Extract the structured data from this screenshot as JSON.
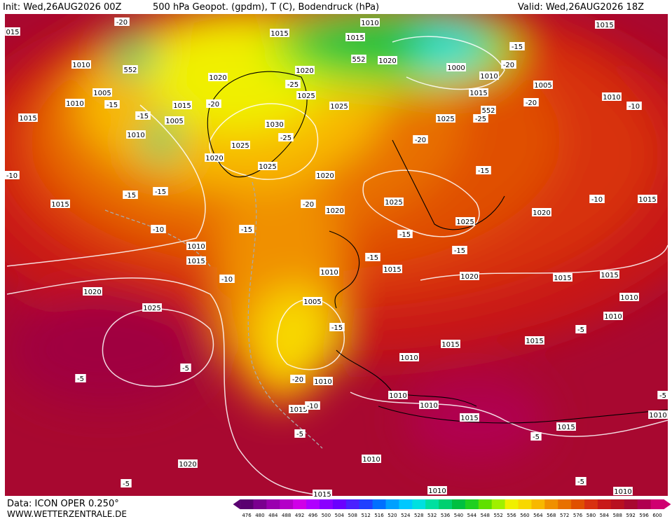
{
  "header": {
    "init": "Init: Wed,26AUG2026 00Z",
    "title": "500 hPa Geopot. (gpdm), T (C), Bodendruck (hPa)",
    "valid": "Valid: Wed,26AUG2026 18Z"
  },
  "footer": {
    "source": "Data: ICON OPER 0.250°",
    "site": "WWW.WETTERZENTRALE.DE"
  },
  "colorbar": {
    "ticks": [
      476,
      480,
      484,
      488,
      492,
      496,
      500,
      504,
      508,
      512,
      516,
      520,
      524,
      528,
      532,
      536,
      540,
      544,
      548,
      552,
      556,
      560,
      564,
      568,
      572,
      576,
      580,
      584,
      588,
      592,
      596,
      600
    ],
    "colors": [
      "#5a0070",
      "#7a008f",
      "#9a00af",
      "#b400c8",
      "#d000e8",
      "#b000ff",
      "#8a00ff",
      "#6a00ff",
      "#4a20ff",
      "#2040ff",
      "#0070ff",
      "#00a0ff",
      "#00c8ff",
      "#00e0e0",
      "#00e0a0",
      "#00d070",
      "#00c040",
      "#20d020",
      "#60e000",
      "#a0f000",
      "#f0f000",
      "#f8d800",
      "#f8b800",
      "#f09000",
      "#e87000",
      "#e05000",
      "#d83010",
      "#c81818",
      "#b81020",
      "#a80830",
      "#b00050",
      "#d00070"
    ]
  },
  "map_labels": [
    "015",
    "1010",
    "1005",
    "1010",
    "1015",
    "1010",
    "1005",
    "1015",
    "1020",
    "1015",
    "1015",
    "1010",
    "1020",
    "1020",
    "1025",
    "1025",
    "1030",
    "1025",
    "1020",
    "1025",
    "1020",
    "1020",
    "1025",
    "1025",
    "1020",
    "1000",
    "1010",
    "1015",
    "1005",
    "1015",
    "1010",
    "1025",
    "1015",
    "1010",
    "1015",
    "1020",
    "1025",
    "1005",
    "1010",
    "1015",
    "1020",
    "1015",
    "1015",
    "1010",
    "1010",
    "1015",
    "1015",
    "1010",
    "1010",
    "1010",
    "1010",
    "1015",
    "1015",
    "1015",
    "1010",
    "1010",
    "1020",
    "1010",
    "1010",
    "1015",
    "1015",
    "-20",
    "-15",
    "-15",
    "-15",
    "-15",
    "-10",
    "-15",
    "-10",
    "-15",
    "-20",
    "-10",
    "-5",
    "-5",
    "-5",
    "-5",
    "-25",
    "-25",
    "-20",
    "-20",
    "-20",
    "-25",
    "-20",
    "-20",
    "-15",
    "-15",
    "-15",
    "-15",
    "-15",
    "-10",
    "-10",
    "-10",
    "-5",
    "-5",
    "-5",
    "-5",
    "552",
    "552",
    "552"
  ]
}
